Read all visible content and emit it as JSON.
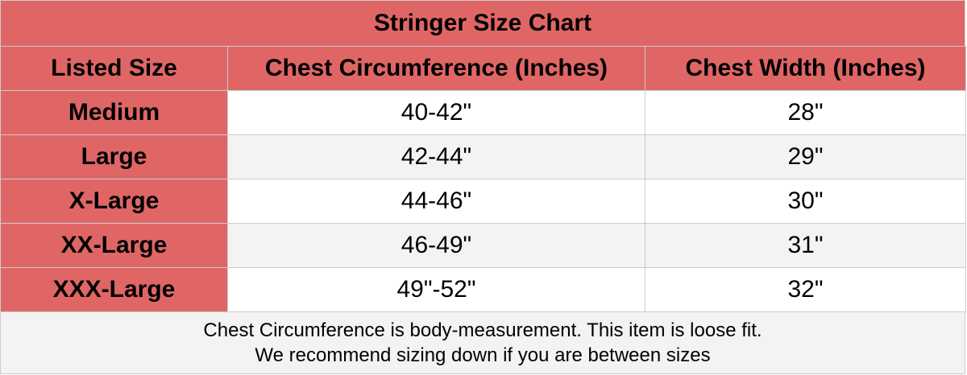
{
  "table": {
    "title": "Stringer Size Chart",
    "headers": [
      "Listed Size",
      "Chest Circumference (Inches)",
      "Chest Width (Inches)"
    ],
    "rows": [
      [
        "Medium",
        "40-42\"",
        "28\""
      ],
      [
        "Large",
        "42-44\"",
        "29\""
      ],
      [
        "X-Large",
        "44-46\"",
        "30\""
      ],
      [
        "XX-Large",
        "46-49\"",
        "31\""
      ],
      [
        "XXX-Large",
        "49\"-52\"",
        "32\""
      ]
    ],
    "footer": [
      "Chest Circumference is body-measurement. This item is loose fit.",
      "We recommend sizing down if you are between sizes"
    ]
  }
}
